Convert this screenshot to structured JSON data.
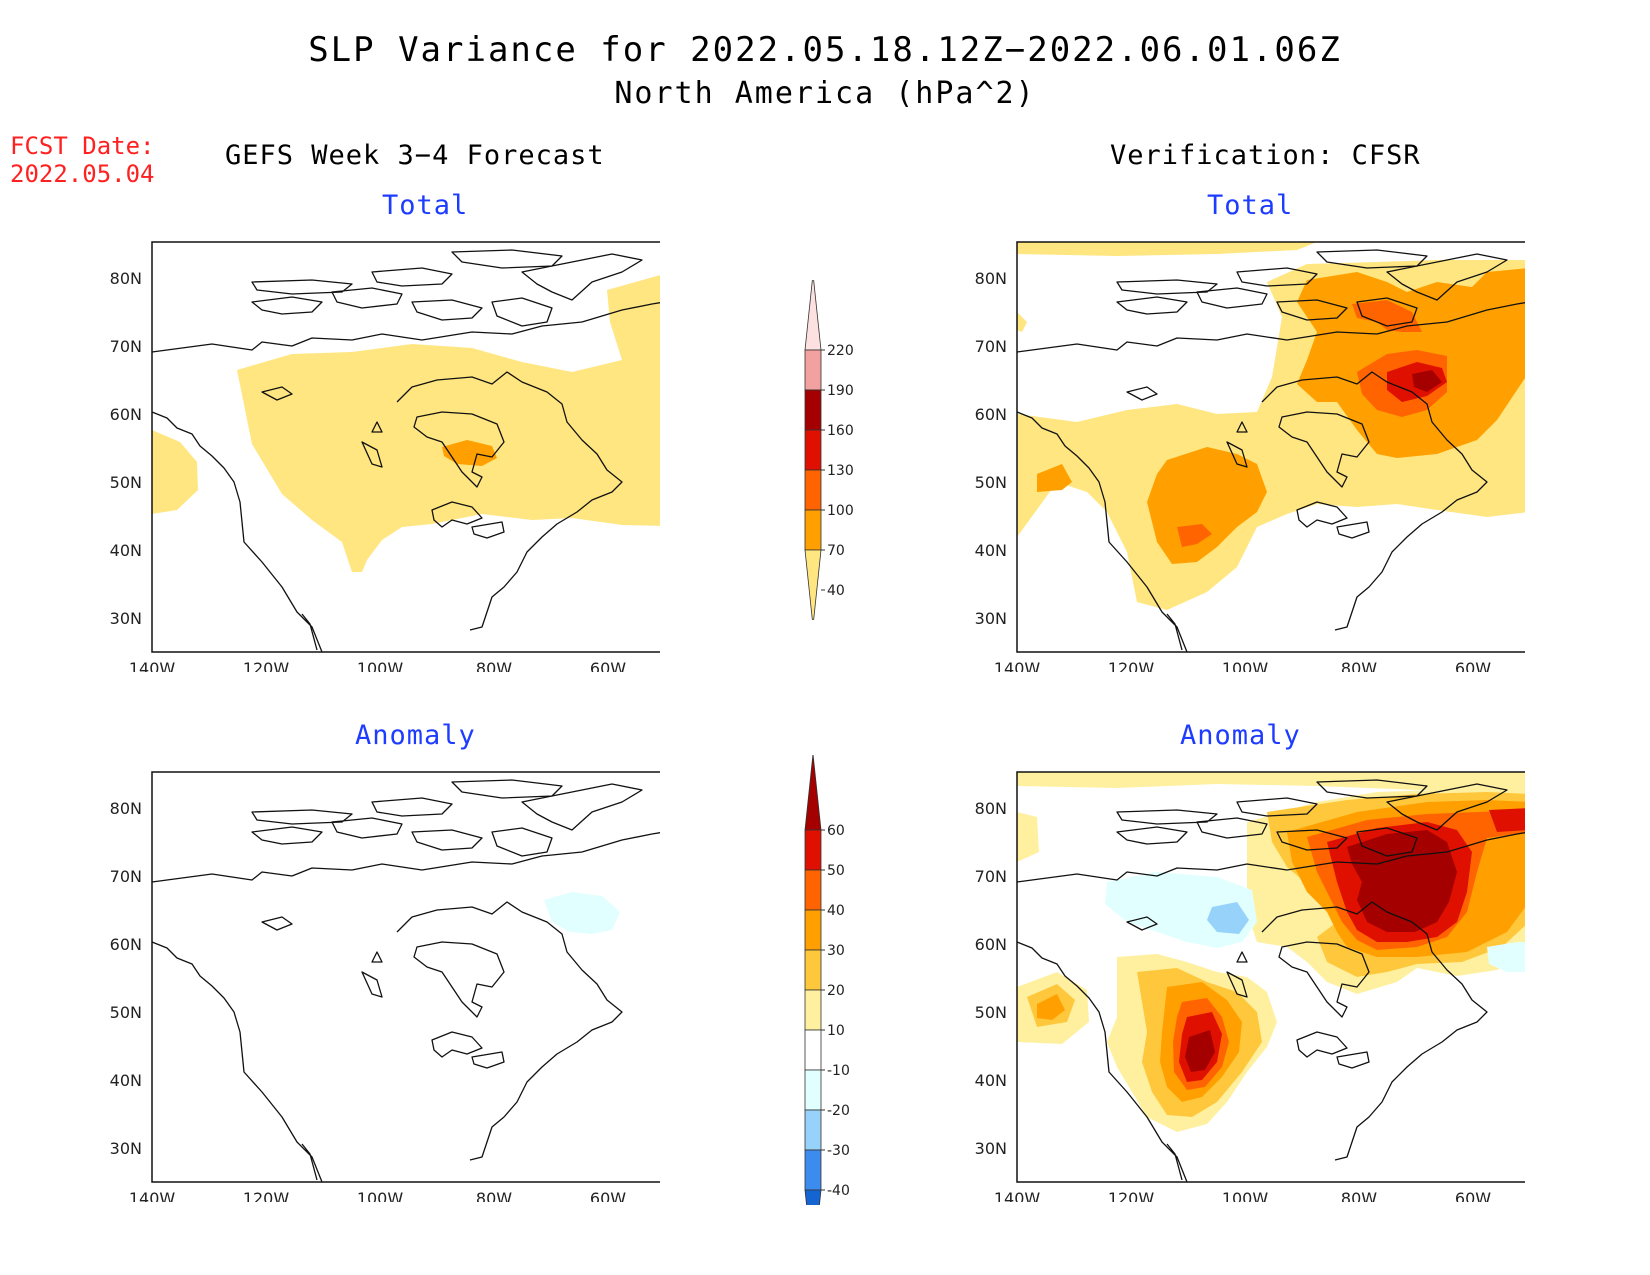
{
  "title": "SLP Variance for 2022.05.18.12Z−2022.06.01.06Z",
  "subtitle": "North America (hPa^2)",
  "fcst": {
    "label": "FCST Date:",
    "date": "2022.05.04"
  },
  "columns": {
    "left": "GEFS Week 3−4 Forecast",
    "right": "Verification: CFSR"
  },
  "rows": {
    "top": "Total",
    "bottom": "Anomaly"
  },
  "axes": {
    "lat_ticks": [
      "80N",
      "70N",
      "60N",
      "50N",
      "40N",
      "30N"
    ],
    "lon_ticks": [
      "140W",
      "120W",
      "100W",
      "80W",
      "60W"
    ]
  },
  "colorbars": {
    "total": {
      "levels": [
        "40",
        "70",
        "100",
        "130",
        "160",
        "190",
        "220"
      ],
      "colors": [
        "#ffe680",
        "#ffa000",
        "#ff6400",
        "#e01000",
        "#a50000",
        "#f2a0a0",
        "#fde0e0"
      ]
    },
    "anomaly": {
      "levels": [
        "-40",
        "-30",
        "-20",
        "-10",
        "10",
        "20",
        "30",
        "40",
        "50",
        "60"
      ],
      "colors": [
        "#1464d2",
        "#3c8cf0",
        "#96d2fa",
        "#e1ffff",
        "#ffffff",
        "#fff0a0",
        "#ffc83c",
        "#ffa000",
        "#ff6400",
        "#e01000",
        "#a50000"
      ]
    }
  }
}
